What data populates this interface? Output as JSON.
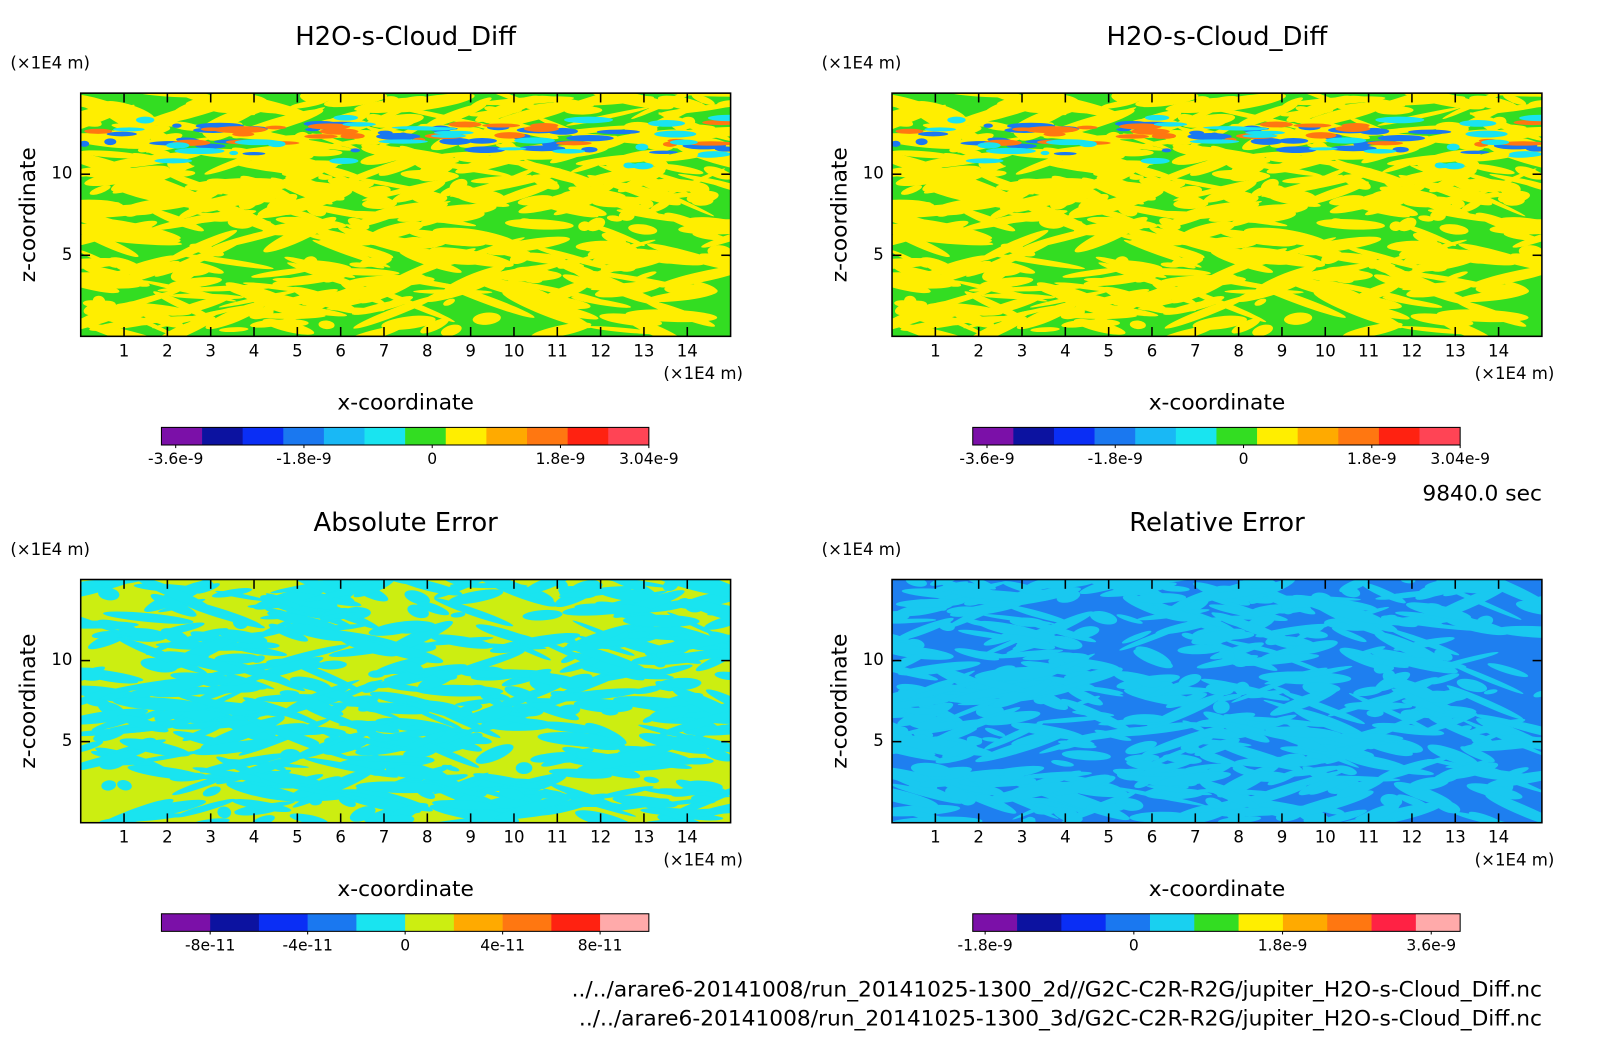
{
  "chart_data": [
    {
      "type": "contour",
      "title": "H2O-s-Cloud_Diff",
      "xlabel": "x-coordinate",
      "ylabel": "z-coordinate",
      "x_unit": "(×1E4 m)",
      "y_unit": "(×1E4 m)",
      "xlim": [
        0,
        15
      ],
      "ylim": [
        0,
        15
      ],
      "xticks": [
        1,
        2,
        3,
        4,
        5,
        6,
        7,
        8,
        9,
        10,
        11,
        12,
        13,
        14
      ],
      "yticks": [
        5,
        10
      ],
      "colorbar": {
        "colors": [
          "#7b10a8",
          "#0c12a0",
          "#0a2ef5",
          "#1a78f0",
          "#19b8f5",
          "#19e4f0",
          "#33dd22",
          "#ffee00",
          "#ffaa00",
          "#ff7711",
          "#ff2211",
          "#ff4455"
        ],
        "lim": [
          -3.8e-09,
          3.04e-09
        ],
        "ticks": [
          -3.6e-09,
          -1.8e-09,
          0,
          1.8e-09,
          3.04e-09
        ]
      }
    },
    {
      "type": "contour",
      "title": "H2O-s-Cloud_Diff",
      "xlabel": "x-coordinate",
      "ylabel": "z-coordinate",
      "x_unit": "(×1E4 m)",
      "y_unit": "(×1E4 m)",
      "xlim": [
        0,
        15
      ],
      "ylim": [
        0,
        15
      ],
      "xticks": [
        1,
        2,
        3,
        4,
        5,
        6,
        7,
        8,
        9,
        10,
        11,
        12,
        13,
        14
      ],
      "yticks": [
        5,
        10
      ],
      "colorbar": {
        "colors": [
          "#7b10a8",
          "#0c12a0",
          "#0a2ef5",
          "#1a78f0",
          "#19b8f5",
          "#19e4f0",
          "#33dd22",
          "#ffee00",
          "#ffaa00",
          "#ff7711",
          "#ff2211",
          "#ff4455"
        ],
        "lim": [
          -3.8e-09,
          3.04e-09
        ],
        "ticks": [
          -3.6e-09,
          -1.8e-09,
          0,
          1.8e-09,
          3.04e-09
        ]
      }
    },
    {
      "type": "contour",
      "title": "Absolute Error",
      "xlabel": "x-coordinate",
      "ylabel": "z-coordinate",
      "x_unit": "(×1E4 m)",
      "y_unit": "(×1E4 m)",
      "xlim": [
        0,
        15
      ],
      "ylim": [
        0,
        15
      ],
      "xticks": [
        1,
        2,
        3,
        4,
        5,
        6,
        7,
        8,
        9,
        10,
        11,
        12,
        13,
        14
      ],
      "yticks": [
        5,
        10
      ],
      "colorbar": {
        "colors": [
          "#7b10a8",
          "#0c12a0",
          "#0a2ef5",
          "#1a78f0",
          "#19e4f0",
          "#ccee11",
          "#ffaa00",
          "#ff7711",
          "#ff2211",
          "#ffaaaa"
        ],
        "lim": [
          -1e-10,
          1e-10
        ],
        "ticks": [
          -8e-11,
          -4e-11,
          0,
          4e-11,
          8e-11
        ]
      }
    },
    {
      "type": "contour",
      "title": "Relative Error",
      "xlabel": "x-coordinate",
      "ylabel": "z-coordinate",
      "x_unit": "(×1E4 m)",
      "y_unit": "(×1E4 m)",
      "xlim": [
        0,
        15
      ],
      "ylim": [
        0,
        15
      ],
      "xticks": [
        1,
        2,
        3,
        4,
        5,
        6,
        7,
        8,
        9,
        10,
        11,
        12,
        13,
        14
      ],
      "yticks": [
        5,
        10
      ],
      "colorbar": {
        "colors": [
          "#7b10a8",
          "#0c12a0",
          "#0a2ef5",
          "#1a78f0",
          "#19d0f0",
          "#33dd22",
          "#ffee00",
          "#ffaa00",
          "#ff7711",
          "#ff2244",
          "#ffaaaa"
        ],
        "lim": [
          -1.95e-09,
          3.95e-09
        ],
        "ticks": [
          -1.8e-09,
          0,
          1.8e-09,
          3.6e-09
        ]
      }
    }
  ],
  "footer": {
    "time": "9840.0 sec",
    "files": [
      "../../arare6-20141008/run_20141025-1300_2d//G2C-C2R-R2G/jupiter_H2O-s-Cloud_Diff.nc",
      "../../arare6-20141008/run_20141025-1300_3d/G2C-C2R-R2G/jupiter_H2O-s-Cloud_Diff.nc"
    ]
  }
}
